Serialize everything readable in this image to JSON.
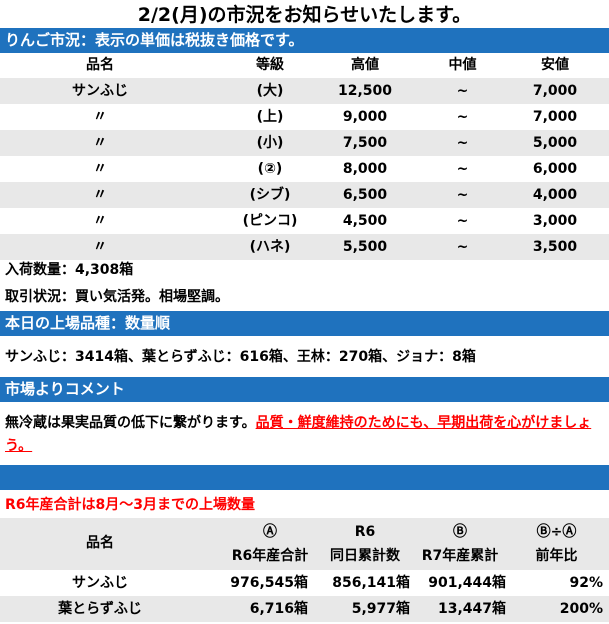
{
  "title": "2/2(月)の市況をお知らせいたします。",
  "market": {
    "header": "りんご市況：表示の単価は税抜き価格です。",
    "columns": [
      "品名",
      "等級",
      "高値",
      "中値",
      "安値"
    ],
    "rows": [
      [
        "サンふじ",
        "(大)",
        "12,500",
        "~",
        "7,000"
      ],
      [
        "〃",
        "(上)",
        "9,000",
        "~",
        "7,000"
      ],
      [
        "〃",
        "(小)",
        "7,500",
        "~",
        "5,000"
      ],
      [
        "〃",
        "(②)",
        "8,000",
        "~",
        "6,000"
      ],
      [
        "〃",
        "(シブ)",
        "6,500",
        "~",
        "4,000"
      ],
      [
        "〃",
        "(ピンコ)",
        "4,500",
        "~",
        "3,000"
      ],
      [
        "〃",
        "(ハネ)",
        "5,500",
        "~",
        "3,500"
      ]
    ],
    "arrivals": "入荷数量：4,308箱",
    "trade": "取引状況：買い気活発。相場堅調。"
  },
  "listing": {
    "header": "本日の上場品種：数量順",
    "text": "サンふじ：3414箱、葉とらずふじ：616箱、王林：270箱、ジョナ：8箱"
  },
  "comment": {
    "header": "市場よりコメント",
    "text": "無冷蔵は果実品質の低下に繋がります。",
    "highlight": "品質・鮮度維持のためにも、早期出荷を心がけましょう。"
  },
  "summary": {
    "note": "R6年産合計は8月～3月までの上場数量",
    "col_name": "品名",
    "cols": [
      {
        "top": "Ⓐ",
        "bottom": "R6年産合計"
      },
      {
        "top": "R6",
        "bottom": "同日累計数"
      },
      {
        "top": "Ⓑ",
        "bottom": "R7年産累計"
      },
      {
        "top": "Ⓑ÷Ⓐ",
        "bottom": "前年比"
      }
    ],
    "rows": [
      [
        "サンふじ",
        "976,545箱",
        "856,141箱",
        "901,444箱",
        "92%"
      ],
      [
        "葉とらずふじ",
        "6,716箱",
        "5,977箱",
        "13,447箱",
        "200%"
      ]
    ]
  },
  "colors": {
    "bar": "#1f72be",
    "stripe": "#e8e8e8",
    "red": "#ff0000"
  }
}
